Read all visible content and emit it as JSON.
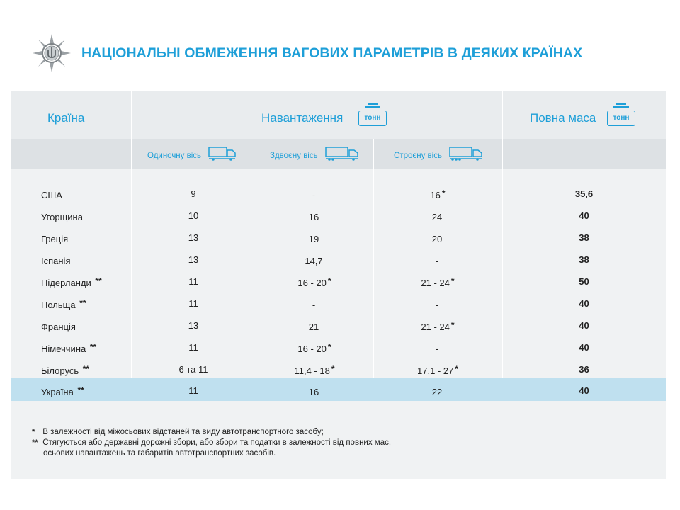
{
  "title": "НАЦІОНАЛЬНІ ОБМЕЖЕННЯ ВАГОВИХ ПАРАМЕТРІВ В ДЕЯКИХ КРАЇНАХ",
  "colors": {
    "accent": "#1e9fd8",
    "highlight_row": "#bfe0ef",
    "panel": "#f0f2f3"
  },
  "header": {
    "country": "Країна",
    "load": "Навантаження",
    "mass": "Повна маса",
    "unit_badge": "тонн",
    "sub_single": "Одиночну вісь",
    "sub_double": "Здвоєну вісь",
    "sub_triple": "Строєну вісь"
  },
  "rows": [
    {
      "country": "США",
      "mark": "",
      "single": "9",
      "double": "-",
      "double_star": "",
      "triple": "16",
      "triple_star": "*",
      "mass": "35,6"
    },
    {
      "country": "Угорщина",
      "mark": "",
      "single": "10",
      "double": "16",
      "double_star": "",
      "triple": "24",
      "triple_star": "",
      "mass": "40"
    },
    {
      "country": "Греція",
      "mark": "",
      "single": "13",
      "double": "19",
      "double_star": "",
      "triple": "20",
      "triple_star": "",
      "mass": "38"
    },
    {
      "country": "Іспанія",
      "mark": "",
      "single": "13",
      "double": "14,7",
      "double_star": "",
      "triple": "-",
      "triple_star": "",
      "mass": "38"
    },
    {
      "country": "Нідерланди",
      "mark": "**",
      "single": "11",
      "double": "16 - 20",
      "double_star": "*",
      "triple": "21 - 24",
      "triple_star": "*",
      "mass": "50"
    },
    {
      "country": "Польща",
      "mark": "**",
      "single": "11",
      "double": "-",
      "double_star": "",
      "triple": "-",
      "triple_star": "",
      "mass": "40"
    },
    {
      "country": "Франція",
      "mark": "",
      "single": "13",
      "double": "21",
      "double_star": "",
      "triple": "21 - 24",
      "triple_star": "*",
      "mass": "40"
    },
    {
      "country": "Німеччина",
      "mark": "**",
      "single": "11",
      "double": "16 - 20",
      "double_star": "*",
      "triple": "-",
      "triple_star": "",
      "mass": "40"
    },
    {
      "country": "Білорусь",
      "mark": "**",
      "single": "6 та 11",
      "double": "11,4 - 18",
      "double_star": "*",
      "triple": "17,1 - 27",
      "triple_star": "*",
      "mass": "36"
    },
    {
      "country": "Україна",
      "mark": "**",
      "single": "11",
      "double": "16",
      "double_star": "",
      "triple": "22",
      "triple_star": "",
      "mass": "40"
    }
  ],
  "notes": {
    "n1_mark": "*",
    "n1": "В залежності від міжосьових відстаней та виду автотранспортного засобу;",
    "n2_mark": "**",
    "n2_line1": "Стягуються або державні дорожні збори, або збори та податки в залежності від повних мас,",
    "n2_line2": "осьових навантажень та габаритів автотранспортних засобів."
  }
}
